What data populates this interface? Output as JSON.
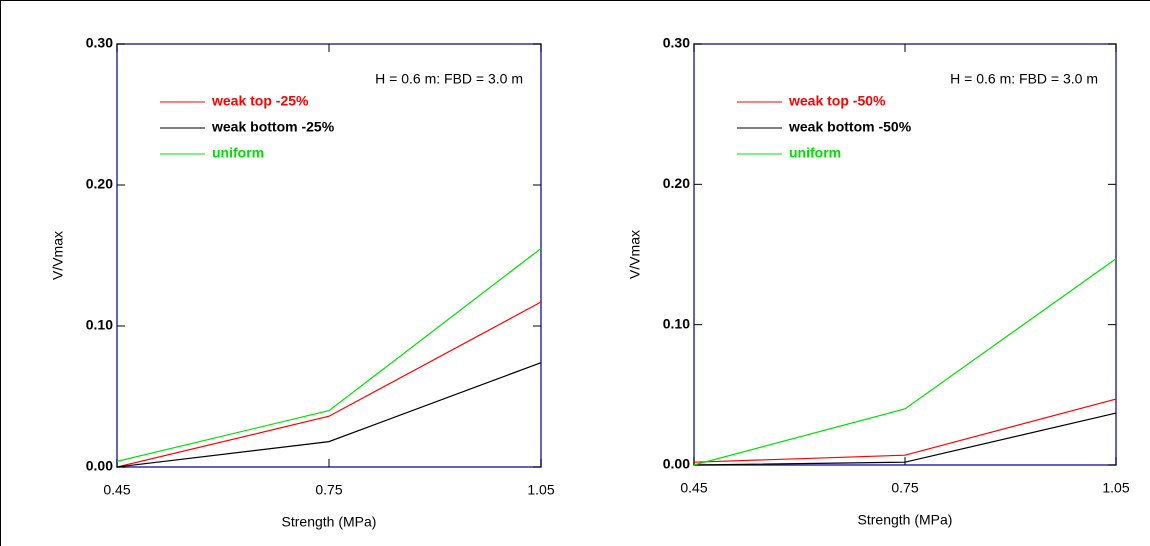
{
  "chart_data": [
    {
      "type": "line",
      "annotation": "H = 0.6 m: FBD = 3.0 m",
      "x_label": "Strength (MPa)",
      "y_label": "V/Vmax",
      "x": [
        0.45,
        0.75,
        1.05
      ],
      "xlim": [
        0.45,
        1.05
      ],
      "xticks": [
        0.45,
        0.75,
        1.05
      ],
      "ylim": [
        0,
        0.3
      ],
      "yticks": [
        {
          "value": 0,
          "label": "0.00"
        },
        {
          "value": 0.1,
          "label": "0.10"
        },
        {
          "value": 0.2,
          "label": "0.20"
        },
        {
          "value": 0.3,
          "label": "0.30"
        }
      ],
      "series": [
        {
          "name": "weak top -25%",
          "color": "#ff0000",
          "values": [
            0.0,
            0.036,
            0.117
          ]
        },
        {
          "name": "weak bottom -25%",
          "color": "#000000",
          "values": [
            0.0,
            0.018,
            0.074
          ]
        },
        {
          "name": "uniform",
          "color": "#00e000",
          "values": [
            0.004,
            0.04,
            0.155
          ]
        }
      ]
    },
    {
      "type": "line",
      "annotation": "H = 0.6 m: FBD = 3.0 m",
      "x_label": "Strength (MPa)",
      "y_label": "V/Vmax",
      "x": [
        0.45,
        0.75,
        1.05
      ],
      "xlim": [
        0.45,
        1.05
      ],
      "xticks": [
        0.45,
        0.75,
        1.05
      ],
      "ylim": [
        0,
        0.3
      ],
      "yticks": [
        {
          "value": 0,
          "label": "0.00"
        },
        {
          "value": 0.1,
          "label": "0.10"
        },
        {
          "value": 0.2,
          "label": "0.20"
        },
        {
          "value": 0.3,
          "label": "0.30"
        }
      ],
      "series": [
        {
          "name": "weak top -50%",
          "color": "#ff0000",
          "values": [
            0.002,
            0.007,
            0.047
          ]
        },
        {
          "name": "weak bottom -50%",
          "color": "#000000",
          "values": [
            0.0,
            0.002,
            0.037
          ]
        },
        {
          "name": "uniform",
          "color": "#00e000",
          "values": [
            0.0,
            0.04,
            0.147
          ]
        }
      ]
    }
  ]
}
